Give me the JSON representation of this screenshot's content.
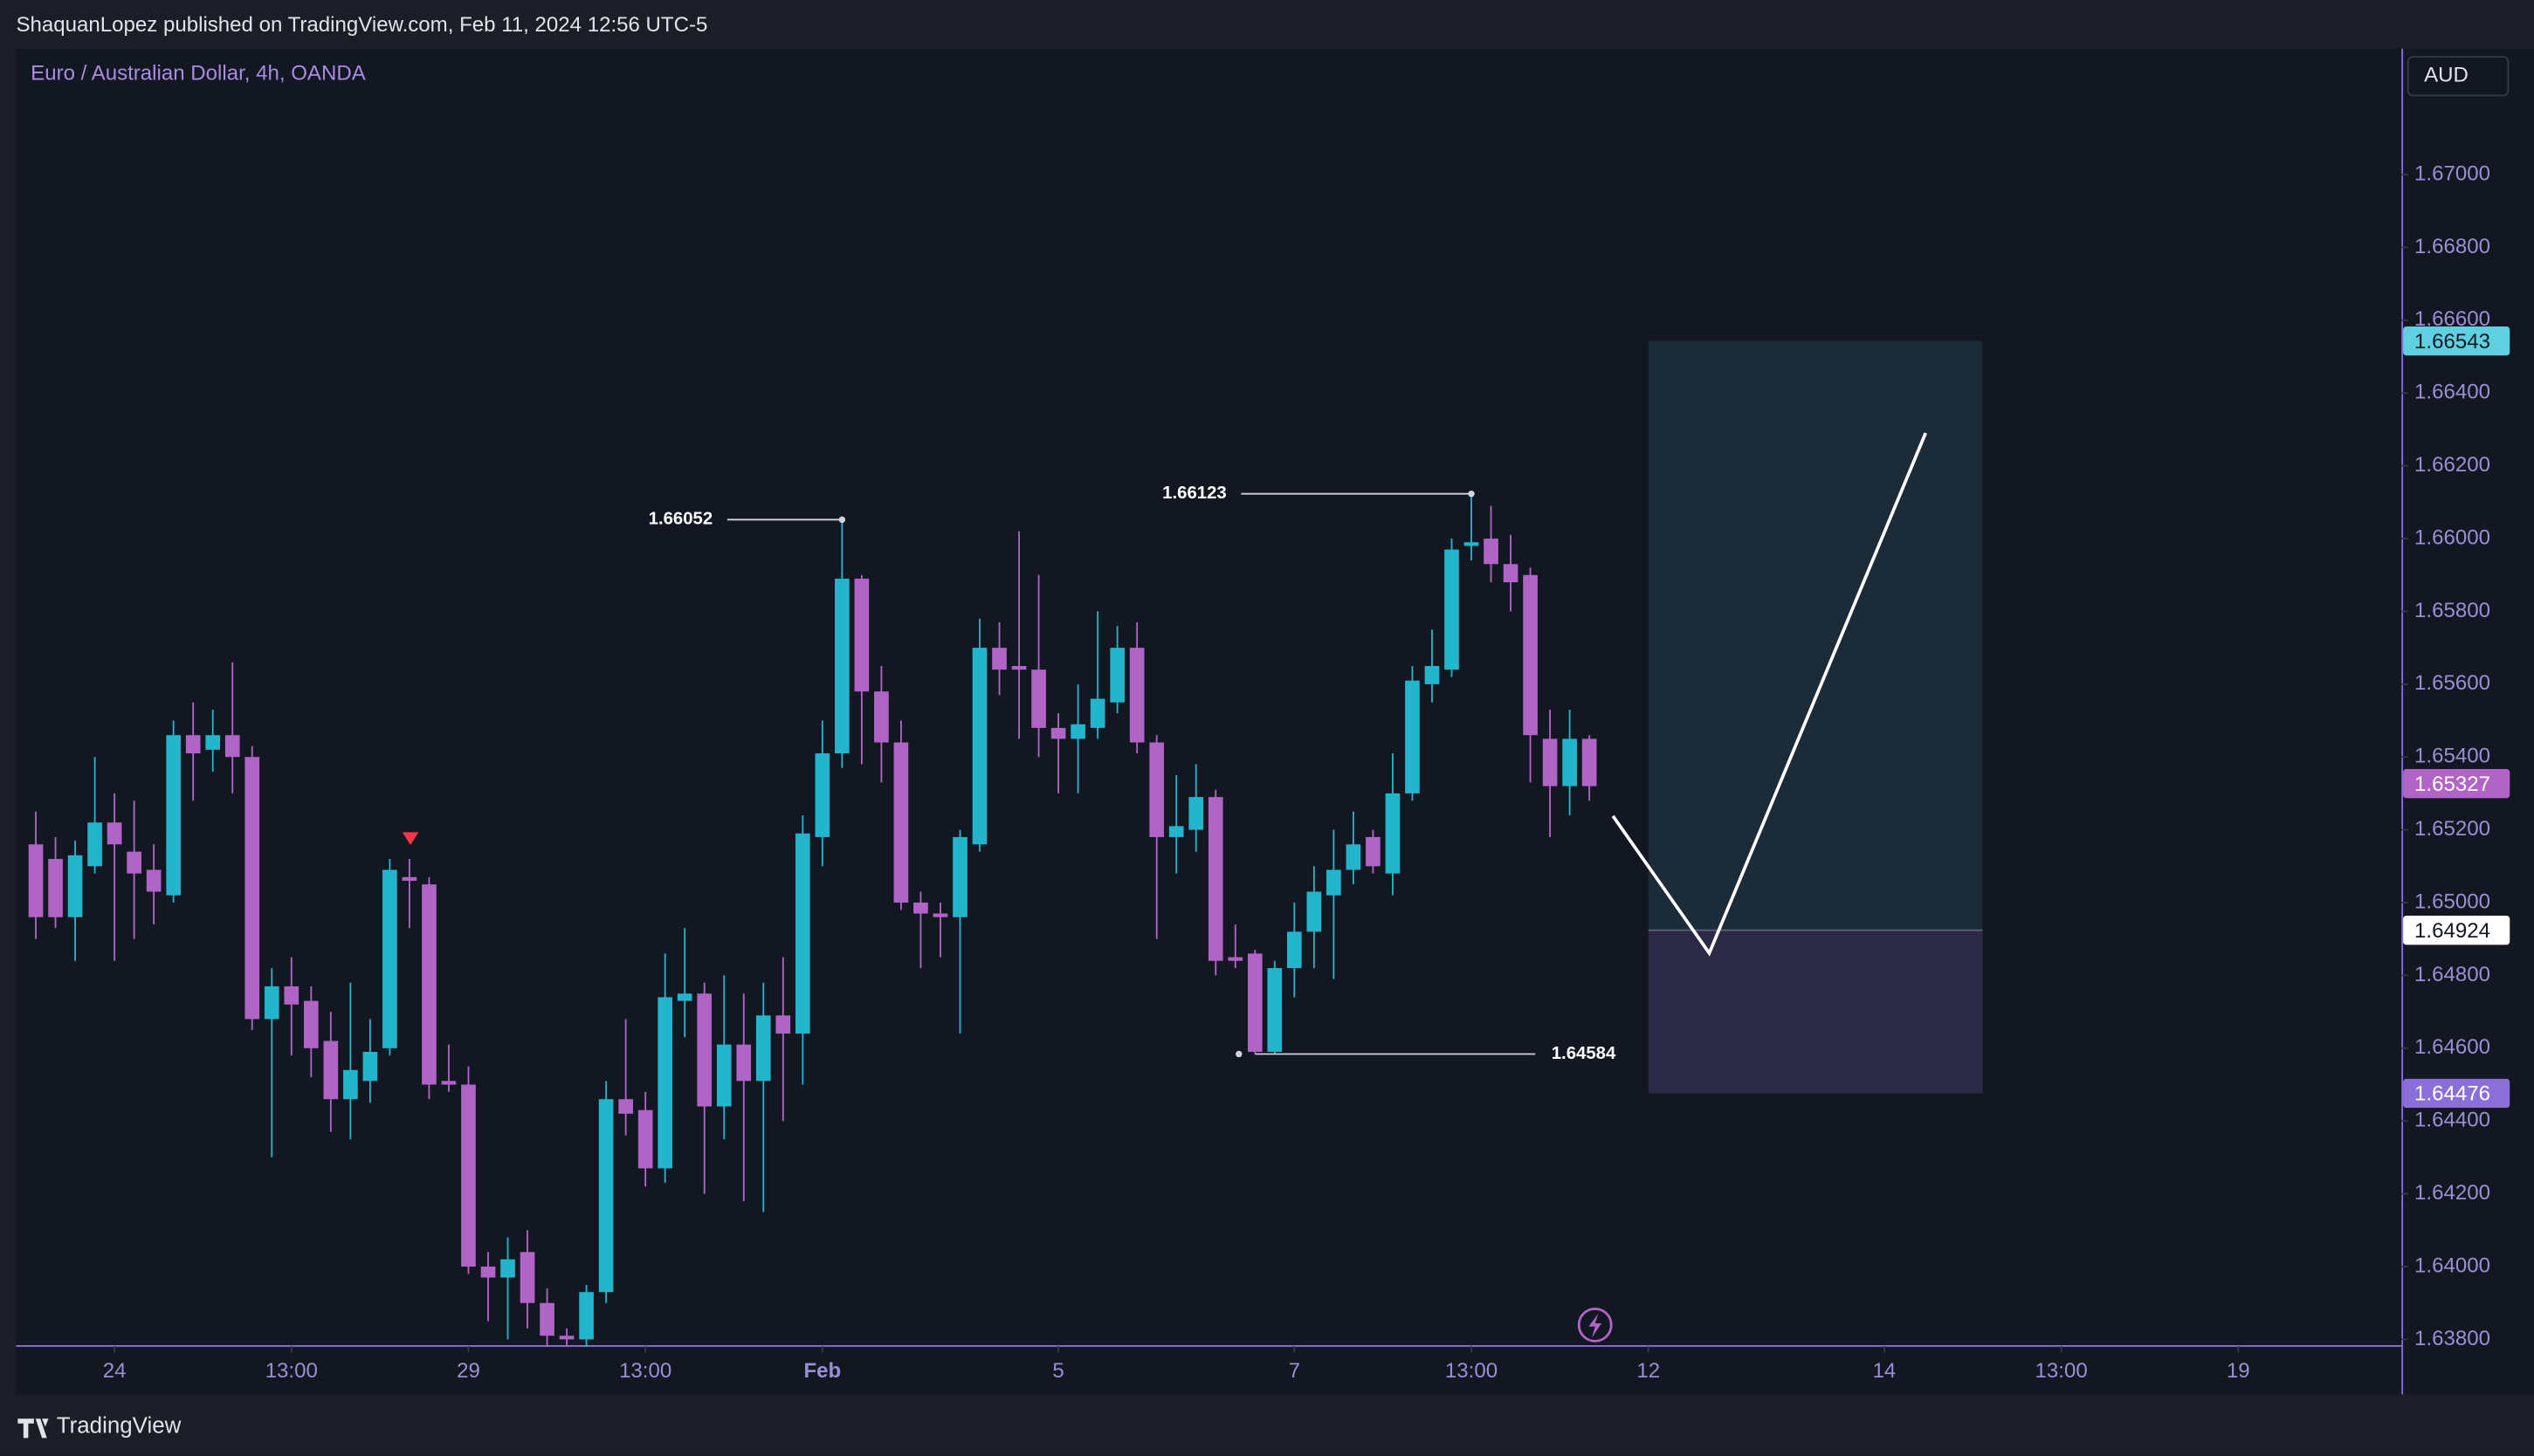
{
  "header": {
    "published": "ShaquanLopez published on TradingView.com, Feb 11, 2024 12:56 UTC-5",
    "footer": "TradingView"
  },
  "chart_data": {
    "type": "candlestick",
    "title": "Euro / Australian Dollar, 4h, OANDA",
    "currency": "AUD",
    "up_color": "#22b5cc",
    "down_color": "#b065c6",
    "open": [
      1.6516,
      1.6512,
      1.6496,
      1.651,
      1.6522,
      1.6514,
      1.6509,
      1.6502,
      1.6546,
      1.6542,
      1.6546,
      1.654,
      1.6468,
      1.6477,
      1.6473,
      1.6462,
      1.6446,
      1.6451,
      1.646,
      1.6507,
      1.6505,
      1.6451,
      1.645,
      1.64,
      1.6397,
      1.6404,
      1.639,
      1.6381,
      1.638,
      1.6393,
      1.6446,
      1.6443,
      1.6427,
      1.6473,
      1.6475,
      1.6444,
      1.6461,
      1.6451,
      1.6469,
      1.6464,
      1.6518,
      1.6541,
      1.6589,
      1.6558,
      1.6544,
      1.65,
      1.6497,
      1.6496,
      1.6516,
      1.657,
      1.6565,
      1.6564,
      1.6548,
      1.6545,
      1.6548,
      1.6555,
      1.657,
      1.6544,
      1.6518,
      1.652,
      1.6529,
      1.6485,
      1.6486,
      1.6459,
      1.6482,
      1.6492,
      1.6502,
      1.6509,
      1.6518,
      1.6508,
      1.653,
      1.656,
      1.6564,
      1.6598,
      1.66,
      1.6593,
      1.659,
      1.6545,
      1.6532,
      1.6545
    ],
    "high": [
      1.6525,
      1.6518,
      1.6517,
      1.654,
      1.653,
      1.6528,
      1.6516,
      1.655,
      1.6555,
      1.6553,
      1.6566,
      1.6543,
      1.6482,
      1.6485,
      1.6477,
      1.647,
      1.6478,
      1.6468,
      1.6512,
      1.6512,
      1.6507,
      1.6461,
      1.6455,
      1.6404,
      1.6408,
      1.641,
      1.6394,
      1.6383,
      1.6395,
      1.6451,
      1.6468,
      1.6448,
      1.6486,
      1.6493,
      1.6478,
      1.648,
      1.6475,
      1.6478,
      1.6485,
      1.6524,
      1.655,
      1.66052,
      1.659,
      1.6565,
      1.655,
      1.6503,
      1.65,
      1.652,
      1.6578,
      1.6577,
      1.6602,
      1.659,
      1.6552,
      1.656,
      1.658,
      1.6576,
      1.6577,
      1.6546,
      1.6535,
      1.6538,
      1.6531,
      1.6494,
      1.6487,
      1.6484,
      1.65,
      1.651,
      1.652,
      1.6525,
      1.652,
      1.6541,
      1.6565,
      1.6575,
      1.66,
      1.66123,
      1.6609,
      1.6601,
      1.6592,
      1.6553,
      1.6553,
      1.6546
    ],
    "low": [
      1.649,
      1.6493,
      1.6484,
      1.6508,
      1.6484,
      1.649,
      1.6494,
      1.65,
      1.6528,
      1.6536,
      1.653,
      1.6465,
      1.643,
      1.6458,
      1.6452,
      1.6437,
      1.6435,
      1.6445,
      1.6458,
      1.6493,
      1.6446,
      1.6448,
      1.6398,
      1.6385,
      1.638,
      1.6383,
      1.6378,
      1.6378,
      1.6378,
      1.639,
      1.6436,
      1.6422,
      1.6423,
      1.6463,
      1.642,
      1.6435,
      1.6418,
      1.6415,
      1.644,
      1.645,
      1.651,
      1.6537,
      1.6538,
      1.6533,
      1.6498,
      1.6482,
      1.6485,
      1.6464,
      1.6514,
      1.6557,
      1.6545,
      1.654,
      1.653,
      1.653,
      1.6545,
      1.6552,
      1.6541,
      1.649,
      1.6508,
      1.6514,
      1.648,
      1.6482,
      1.64584,
      1.64584,
      1.6474,
      1.6482,
      1.6479,
      1.6505,
      1.6508,
      1.6502,
      1.6528,
      1.6555,
      1.6562,
      1.6594,
      1.6588,
      1.658,
      1.6533,
      1.6518,
      1.6524,
      1.6528
    ],
    "close": [
      1.6496,
      1.6496,
      1.6513,
      1.6522,
      1.6516,
      1.6508,
      1.6503,
      1.6546,
      1.6541,
      1.6546,
      1.654,
      1.6468,
      1.6477,
      1.6472,
      1.646,
      1.6446,
      1.6454,
      1.6459,
      1.6509,
      1.6506,
      1.645,
      1.645,
      1.64,
      1.6397,
      1.6402,
      1.639,
      1.6381,
      1.638,
      1.6393,
      1.6446,
      1.6442,
      1.6427,
      1.6474,
      1.6475,
      1.6444,
      1.6461,
      1.6451,
      1.6469,
      1.6464,
      1.6519,
      1.6541,
      1.6589,
      1.6558,
      1.6544,
      1.65,
      1.6497,
      1.6496,
      1.6518,
      1.657,
      1.6564,
      1.6564,
      1.6548,
      1.6545,
      1.6549,
      1.6556,
      1.657,
      1.6544,
      1.6518,
      1.6521,
      1.6529,
      1.6484,
      1.6484,
      1.6459,
      1.6482,
      1.6492,
      1.6503,
      1.6509,
      1.6516,
      1.651,
      1.653,
      1.6561,
      1.6565,
      1.6597,
      1.6599,
      1.6593,
      1.6588,
      1.6546,
      1.6532,
      1.6545,
      1.6532
    ],
    "xlim": [
      -1,
      120.3
    ],
    "xticks": [
      {
        "value": 4,
        "label": "24"
      },
      {
        "value": 13,
        "label": "13:00"
      },
      {
        "value": 22,
        "label": "29"
      },
      {
        "value": 31,
        "label": "13:00"
      },
      {
        "value": 40,
        "label": "Feb"
      },
      {
        "value": 52,
        "label": "5"
      },
      {
        "value": 64,
        "label": "7"
      },
      {
        "value": 73,
        "label": "13:00"
      },
      {
        "value": 82,
        "label": "12"
      },
      {
        "value": 94,
        "label": "14"
      },
      {
        "value": 103,
        "label": "13:00"
      },
      {
        "value": 112,
        "label": "19"
      }
    ],
    "ylim": [
      1.63782,
      1.67346
    ],
    "yticks": [
      {
        "value": 1.67,
        "label": "1.67000"
      },
      {
        "value": 1.668,
        "label": "1.66800"
      },
      {
        "value": 1.666,
        "label": "1.66600"
      },
      {
        "value": 1.664,
        "label": "1.66400"
      },
      {
        "value": 1.662,
        "label": "1.66200"
      },
      {
        "value": 1.66,
        "label": "1.66000"
      },
      {
        "value": 1.658,
        "label": "1.65800"
      },
      {
        "value": 1.656,
        "label": "1.65600"
      },
      {
        "value": 1.654,
        "label": "1.65400"
      },
      {
        "value": 1.652,
        "label": "1.65200"
      },
      {
        "value": 1.65,
        "label": "1.65000"
      },
      {
        "value": 1.648,
        "label": "1.64800"
      },
      {
        "value": 1.646,
        "label": "1.64600"
      },
      {
        "value": 1.644,
        "label": "1.64400"
      },
      {
        "value": 1.642,
        "label": "1.64200"
      },
      {
        "value": 1.64,
        "label": "1.64000"
      },
      {
        "value": 1.638,
        "label": "1.63800"
      }
    ],
    "annotations": [
      {
        "value": 1.66052,
        "x": 41
      },
      {
        "value": 1.66123,
        "x": 73
      },
      {
        "value": 1.64584,
        "x": 62
      }
    ],
    "position": {
      "x": [
        82,
        99
      ],
      "target": 1.66543,
      "entry": 1.64924,
      "stop": 1.64476
    },
    "last_price": 1.65327,
    "projection": {
      "x": [
        80.2,
        85.1,
        96.1
      ],
      "y": [
        1.65238,
        1.64861,
        1.6629
      ]
    }
  }
}
